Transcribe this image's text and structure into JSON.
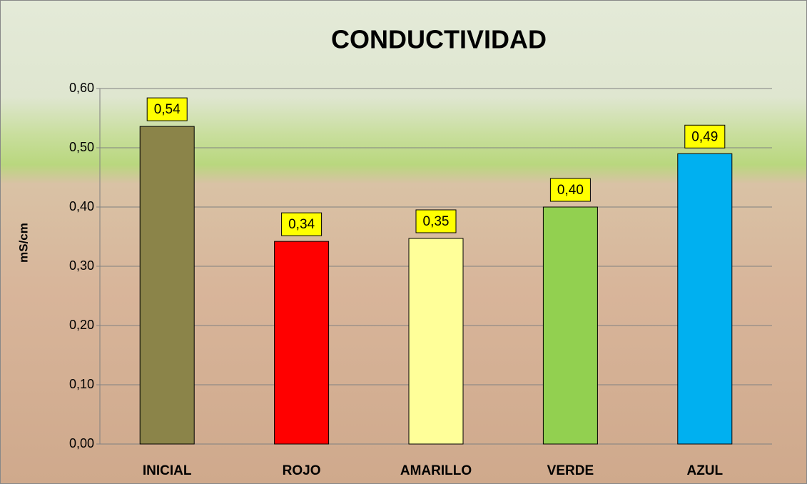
{
  "chart_data": {
    "type": "bar",
    "title": "CONDUCTIVIDAD",
    "y_label": "mS/cm",
    "categories": [
      "INICIAL",
      "ROJO",
      "AMARILLO",
      "VERDE",
      "AZUL"
    ],
    "values": [
      0.536,
      0.342,
      0.347,
      0.4,
      0.49
    ],
    "value_labels": [
      "0,54",
      "0,34",
      "0,35",
      "0,40",
      "0,49"
    ],
    "colors": [
      "#8b8449",
      "#ff0000",
      "#ffff99",
      "#92d050",
      "#00b0f0"
    ],
    "ylim": [
      0,
      0.6
    ],
    "yticks": [
      {
        "value": 0,
        "label": "0,00"
      },
      {
        "value": 0.1,
        "label": "0,10"
      },
      {
        "value": 0.2,
        "label": "0,20"
      },
      {
        "value": 0.3,
        "label": "0,30"
      },
      {
        "value": 0.4,
        "label": "0,40"
      },
      {
        "value": 0.5,
        "label": "0,50"
      },
      {
        "value": 0.6,
        "label": "0,60"
      }
    ],
    "grid": true
  }
}
